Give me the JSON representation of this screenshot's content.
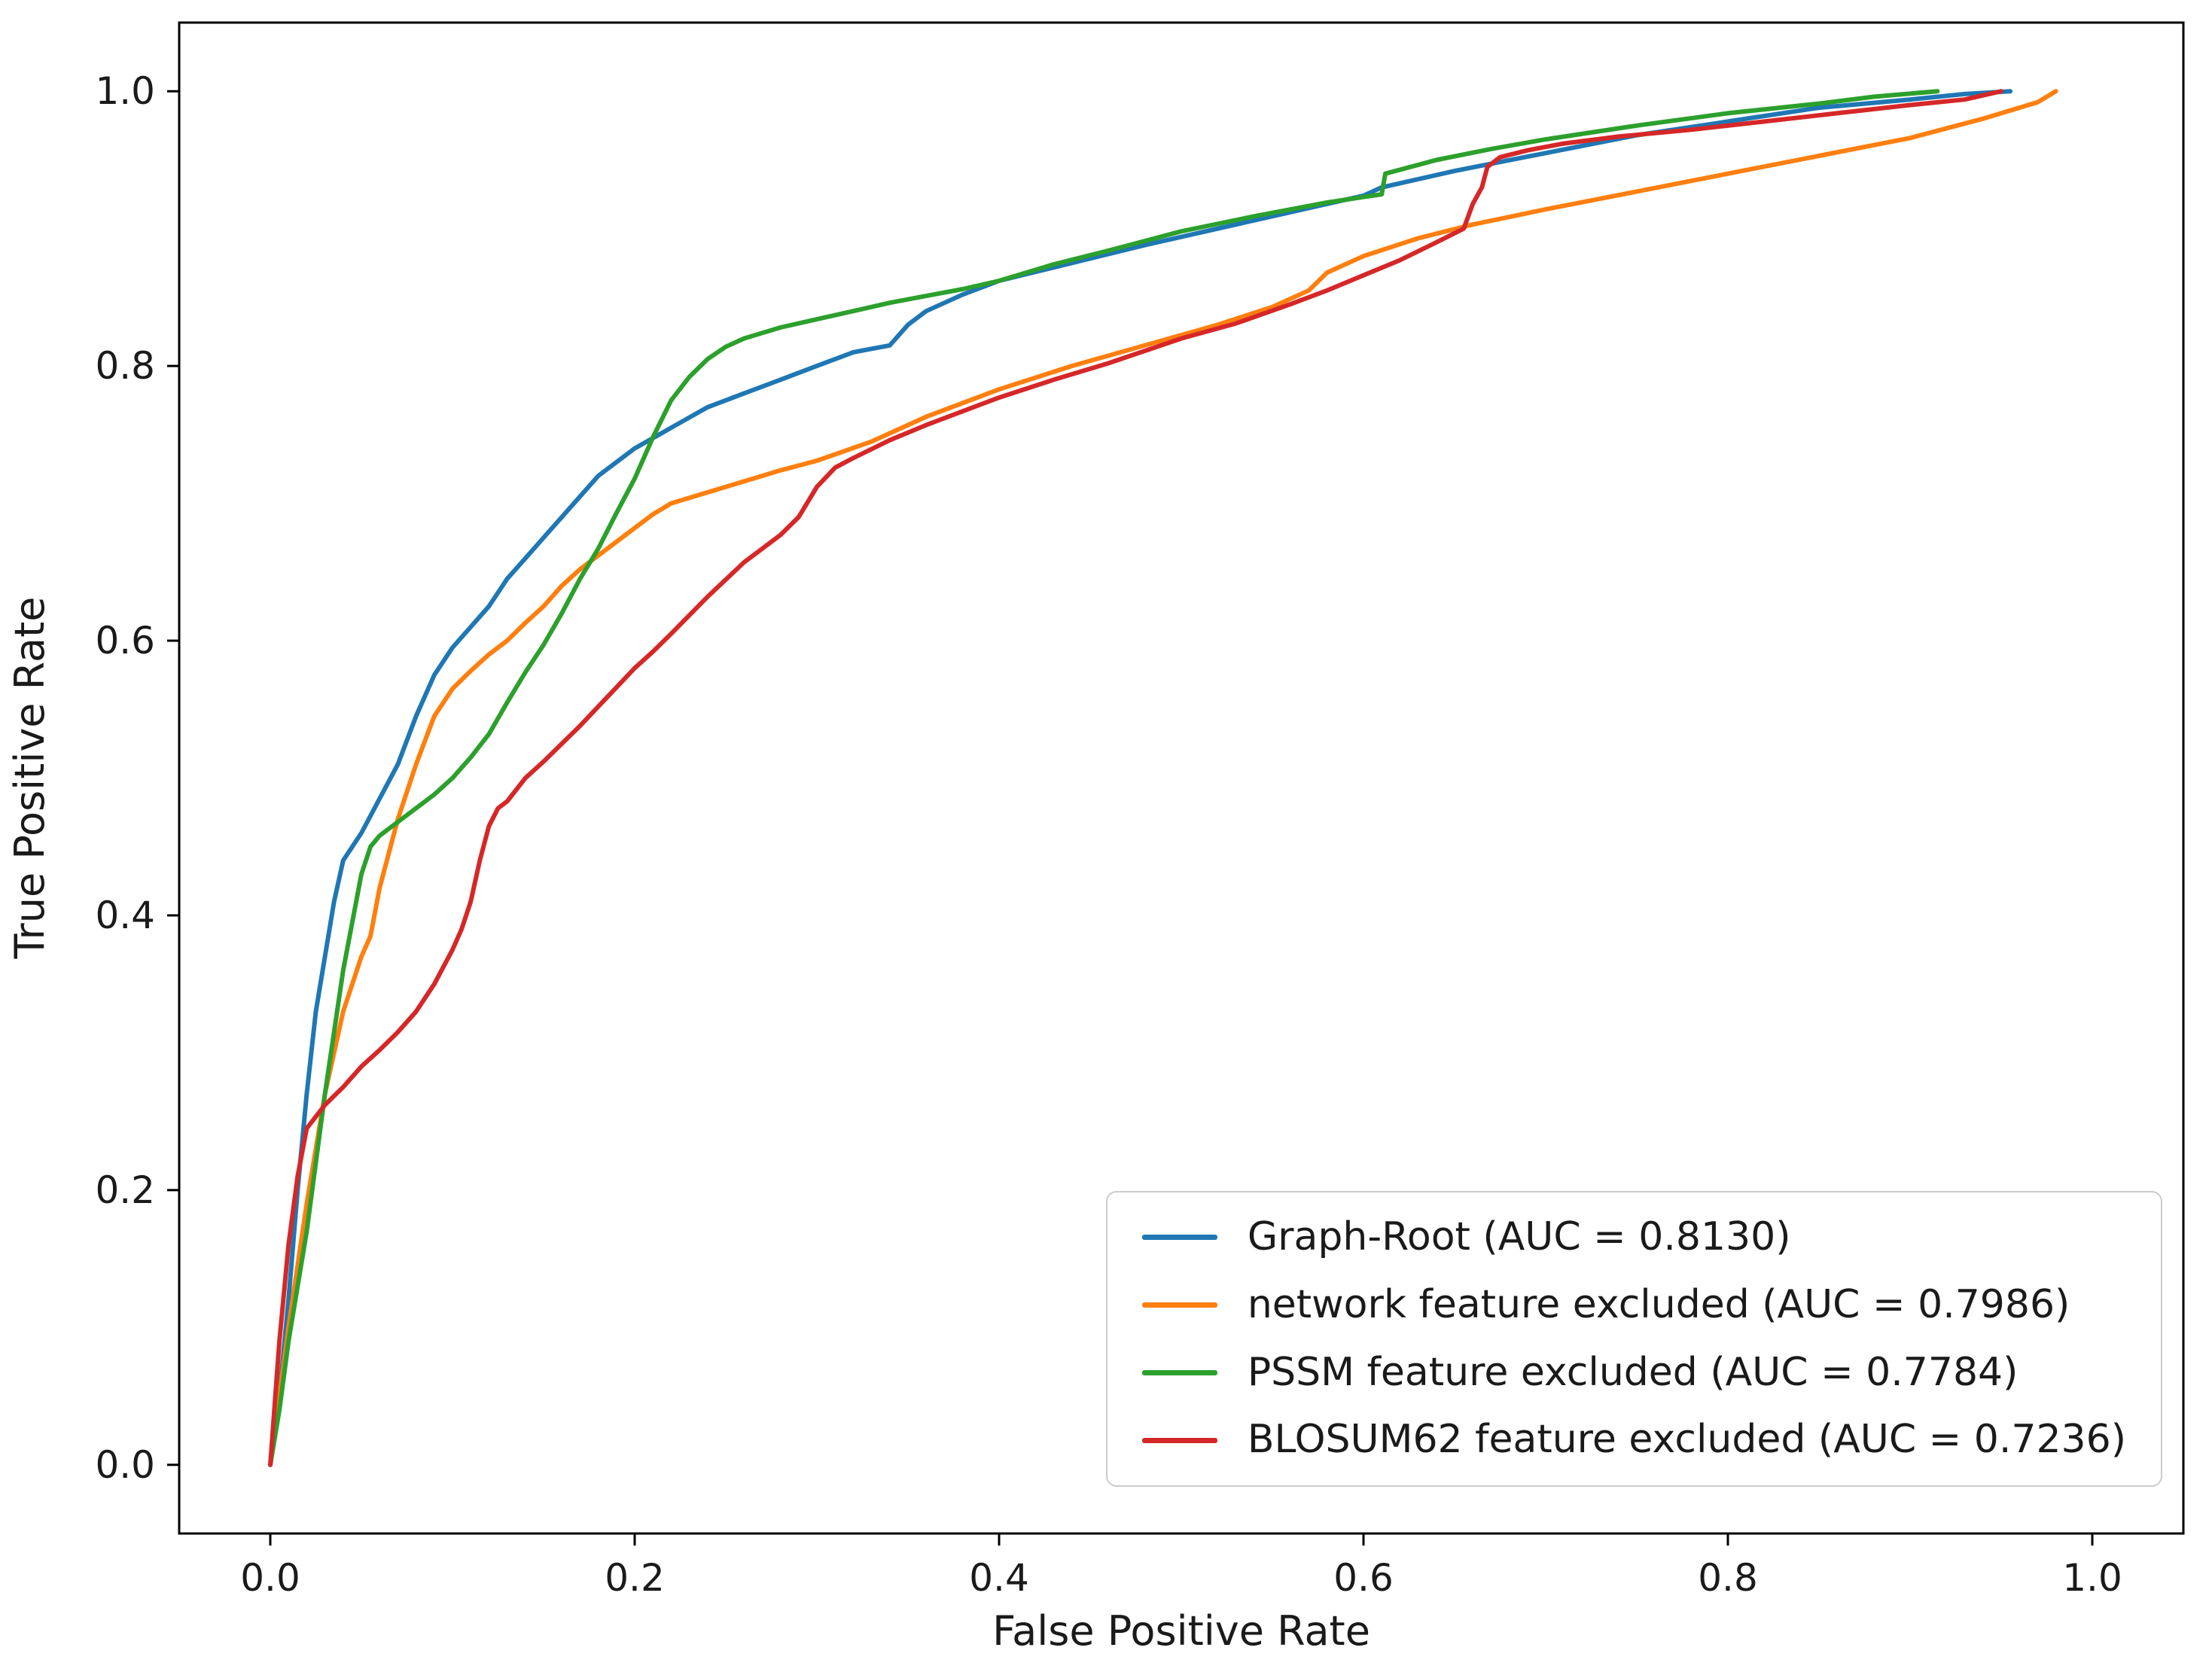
{
  "chart_data": {
    "type": "line",
    "title": "",
    "xlabel": "False Positive Rate",
    "ylabel": "True Positive Rate",
    "xlim": [
      -0.05,
      1.05
    ],
    "ylim": [
      -0.05,
      1.05
    ],
    "x_ticks": [
      0.0,
      0.2,
      0.4,
      0.6,
      0.8,
      1.0
    ],
    "y_ticks": [
      0.0,
      0.2,
      0.4,
      0.6,
      0.8,
      1.0
    ],
    "x_tick_labels": [
      "0.0",
      "0.2",
      "0.4",
      "0.6",
      "0.8",
      "1.0"
    ],
    "y_tick_labels": [
      "0.0",
      "0.2",
      "0.4",
      "0.6",
      "0.8",
      "1.0"
    ],
    "grid": false,
    "legend_position": "lower right",
    "series": [
      {
        "id": "graph-root",
        "name": "Graph-Root",
        "auc": "0.8130",
        "label": "Graph-Root (AUC = 0.8130)",
        "color": "#1f77b4",
        "points": [
          [
            0,
            0
          ],
          [
            0.005,
            0.05
          ],
          [
            0.01,
            0.12
          ],
          [
            0.015,
            0.2
          ],
          [
            0.02,
            0.27
          ],
          [
            0.025,
            0.33
          ],
          [
            0.03,
            0.37
          ],
          [
            0.035,
            0.41
          ],
          [
            0.04,
            0.44
          ],
          [
            0.05,
            0.46
          ],
          [
            0.06,
            0.485
          ],
          [
            0.07,
            0.51
          ],
          [
            0.08,
            0.545
          ],
          [
            0.09,
            0.575
          ],
          [
            0.1,
            0.595
          ],
          [
            0.11,
            0.61
          ],
          [
            0.12,
            0.625
          ],
          [
            0.13,
            0.645
          ],
          [
            0.14,
            0.66
          ],
          [
            0.15,
            0.675
          ],
          [
            0.16,
            0.69
          ],
          [
            0.17,
            0.705
          ],
          [
            0.18,
            0.72
          ],
          [
            0.19,
            0.73
          ],
          [
            0.2,
            0.74
          ],
          [
            0.22,
            0.755
          ],
          [
            0.24,
            0.77
          ],
          [
            0.26,
            0.78
          ],
          [
            0.28,
            0.79
          ],
          [
            0.3,
            0.8
          ],
          [
            0.32,
            0.81
          ],
          [
            0.34,
            0.815
          ],
          [
            0.35,
            0.83
          ],
          [
            0.36,
            0.84
          ],
          [
            0.38,
            0.852
          ],
          [
            0.4,
            0.862
          ],
          [
            0.44,
            0.875
          ],
          [
            0.48,
            0.888
          ],
          [
            0.52,
            0.9
          ],
          [
            0.56,
            0.912
          ],
          [
            0.6,
            0.924
          ],
          [
            0.61,
            0.93
          ],
          [
            0.65,
            0.942
          ],
          [
            0.7,
            0.955
          ],
          [
            0.75,
            0.968
          ],
          [
            0.8,
            0.978
          ],
          [
            0.85,
            0.988
          ],
          [
            0.9,
            0.994
          ],
          [
            0.93,
            0.998
          ],
          [
            0.955,
            1.0
          ]
        ]
      },
      {
        "id": "network-excluded",
        "name": "network feature excluded",
        "auc": "0.7986",
        "label": "network feature excluded (AUC = 0.7986)",
        "color": "#ff7f0e",
        "points": [
          [
            0,
            0
          ],
          [
            0.005,
            0.05
          ],
          [
            0.01,
            0.1
          ],
          [
            0.02,
            0.19
          ],
          [
            0.03,
            0.27
          ],
          [
            0.04,
            0.33
          ],
          [
            0.05,
            0.37
          ],
          [
            0.055,
            0.385
          ],
          [
            0.06,
            0.42
          ],
          [
            0.07,
            0.47
          ],
          [
            0.08,
            0.51
          ],
          [
            0.09,
            0.545
          ],
          [
            0.1,
            0.565
          ],
          [
            0.11,
            0.578
          ],
          [
            0.12,
            0.59
          ],
          [
            0.13,
            0.6
          ],
          [
            0.14,
            0.613
          ],
          [
            0.15,
            0.625
          ],
          [
            0.16,
            0.64
          ],
          [
            0.17,
            0.652
          ],
          [
            0.18,
            0.662
          ],
          [
            0.19,
            0.672
          ],
          [
            0.2,
            0.682
          ],
          [
            0.21,
            0.692
          ],
          [
            0.22,
            0.7
          ],
          [
            0.24,
            0.708
          ],
          [
            0.26,
            0.716
          ],
          [
            0.28,
            0.724
          ],
          [
            0.3,
            0.731
          ],
          [
            0.33,
            0.745
          ],
          [
            0.36,
            0.763
          ],
          [
            0.4,
            0.783
          ],
          [
            0.44,
            0.8
          ],
          [
            0.48,
            0.815
          ],
          [
            0.52,
            0.83
          ],
          [
            0.55,
            0.843
          ],
          [
            0.57,
            0.855
          ],
          [
            0.58,
            0.868
          ],
          [
            0.6,
            0.88
          ],
          [
            0.63,
            0.893
          ],
          [
            0.66,
            0.903
          ],
          [
            0.7,
            0.914
          ],
          [
            0.75,
            0.927
          ],
          [
            0.8,
            0.94
          ],
          [
            0.85,
            0.953
          ],
          [
            0.9,
            0.966
          ],
          [
            0.94,
            0.98
          ],
          [
            0.97,
            0.992
          ],
          [
            0.98,
            1.0
          ]
        ]
      },
      {
        "id": "pssm-excluded",
        "name": "PSSM feature excluded",
        "auc": "0.7784",
        "label": "PSSM feature excluded (AUC = 0.7784)",
        "color": "#2ca02c",
        "points": [
          [
            0,
            0
          ],
          [
            0.005,
            0.04
          ],
          [
            0.01,
            0.09
          ],
          [
            0.02,
            0.17
          ],
          [
            0.03,
            0.27
          ],
          [
            0.04,
            0.36
          ],
          [
            0.05,
            0.43
          ],
          [
            0.055,
            0.45
          ],
          [
            0.06,
            0.458
          ],
          [
            0.07,
            0.468
          ],
          [
            0.08,
            0.478
          ],
          [
            0.09,
            0.488
          ],
          [
            0.1,
            0.5
          ],
          [
            0.11,
            0.515
          ],
          [
            0.12,
            0.532
          ],
          [
            0.13,
            0.555
          ],
          [
            0.14,
            0.577
          ],
          [
            0.15,
            0.597
          ],
          [
            0.16,
            0.62
          ],
          [
            0.17,
            0.645
          ],
          [
            0.18,
            0.667
          ],
          [
            0.19,
            0.693
          ],
          [
            0.2,
            0.718
          ],
          [
            0.21,
            0.748
          ],
          [
            0.22,
            0.775
          ],
          [
            0.23,
            0.792
          ],
          [
            0.24,
            0.805
          ],
          [
            0.25,
            0.814
          ],
          [
            0.26,
            0.82
          ],
          [
            0.28,
            0.828
          ],
          [
            0.3,
            0.834
          ],
          [
            0.32,
            0.84
          ],
          [
            0.34,
            0.846
          ],
          [
            0.36,
            0.851
          ],
          [
            0.38,
            0.856
          ],
          [
            0.4,
            0.862
          ],
          [
            0.43,
            0.874
          ],
          [
            0.46,
            0.884
          ],
          [
            0.5,
            0.898
          ],
          [
            0.54,
            0.909
          ],
          [
            0.58,
            0.919
          ],
          [
            0.6,
            0.923
          ],
          [
            0.61,
            0.925
          ],
          [
            0.612,
            0.94
          ],
          [
            0.64,
            0.95
          ],
          [
            0.67,
            0.958
          ],
          [
            0.7,
            0.965
          ],
          [
            0.75,
            0.975
          ],
          [
            0.8,
            0.984
          ],
          [
            0.85,
            0.991
          ],
          [
            0.88,
            0.996
          ],
          [
            0.915,
            1.0
          ]
        ]
      },
      {
        "id": "blosum62-excluded",
        "name": "BLOSUM62 feature excluded",
        "auc": "0.7236",
        "label": "BLOSUM62 feature excluded (AUC = 0.7236)",
        "color": "#d62728",
        "points": [
          [
            0,
            0
          ],
          [
            0.005,
            0.09
          ],
          [
            0.01,
            0.16
          ],
          [
            0.015,
            0.21
          ],
          [
            0.02,
            0.245
          ],
          [
            0.03,
            0.262
          ],
          [
            0.04,
            0.275
          ],
          [
            0.05,
            0.29
          ],
          [
            0.06,
            0.302
          ],
          [
            0.07,
            0.315
          ],
          [
            0.08,
            0.33
          ],
          [
            0.09,
            0.35
          ],
          [
            0.1,
            0.375
          ],
          [
            0.105,
            0.39
          ],
          [
            0.11,
            0.41
          ],
          [
            0.115,
            0.44
          ],
          [
            0.12,
            0.465
          ],
          [
            0.125,
            0.478
          ],
          [
            0.13,
            0.483
          ],
          [
            0.14,
            0.5
          ],
          [
            0.15,
            0.512
          ],
          [
            0.16,
            0.525
          ],
          [
            0.17,
            0.538
          ],
          [
            0.18,
            0.552
          ],
          [
            0.19,
            0.566
          ],
          [
            0.2,
            0.58
          ],
          [
            0.21,
            0.592
          ],
          [
            0.22,
            0.605
          ],
          [
            0.24,
            0.632
          ],
          [
            0.26,
            0.657
          ],
          [
            0.28,
            0.677
          ],
          [
            0.29,
            0.69
          ],
          [
            0.3,
            0.712
          ],
          [
            0.31,
            0.726
          ],
          [
            0.32,
            0.733
          ],
          [
            0.34,
            0.746
          ],
          [
            0.36,
            0.757
          ],
          [
            0.38,
            0.767
          ],
          [
            0.4,
            0.777
          ],
          [
            0.43,
            0.79
          ],
          [
            0.46,
            0.802
          ],
          [
            0.5,
            0.82
          ],
          [
            0.53,
            0.831
          ],
          [
            0.56,
            0.845
          ],
          [
            0.58,
            0.855
          ],
          [
            0.6,
            0.866
          ],
          [
            0.62,
            0.877
          ],
          [
            0.64,
            0.89
          ],
          [
            0.655,
            0.9
          ],
          [
            0.66,
            0.918
          ],
          [
            0.665,
            0.93
          ],
          [
            0.668,
            0.945
          ],
          [
            0.675,
            0.952
          ],
          [
            0.69,
            0.957
          ],
          [
            0.71,
            0.962
          ],
          [
            0.74,
            0.967
          ],
          [
            0.78,
            0.972
          ],
          [
            0.82,
            0.978
          ],
          [
            0.86,
            0.984
          ],
          [
            0.9,
            0.99
          ],
          [
            0.93,
            0.994
          ],
          [
            0.95,
            1.0
          ]
        ]
      }
    ]
  }
}
